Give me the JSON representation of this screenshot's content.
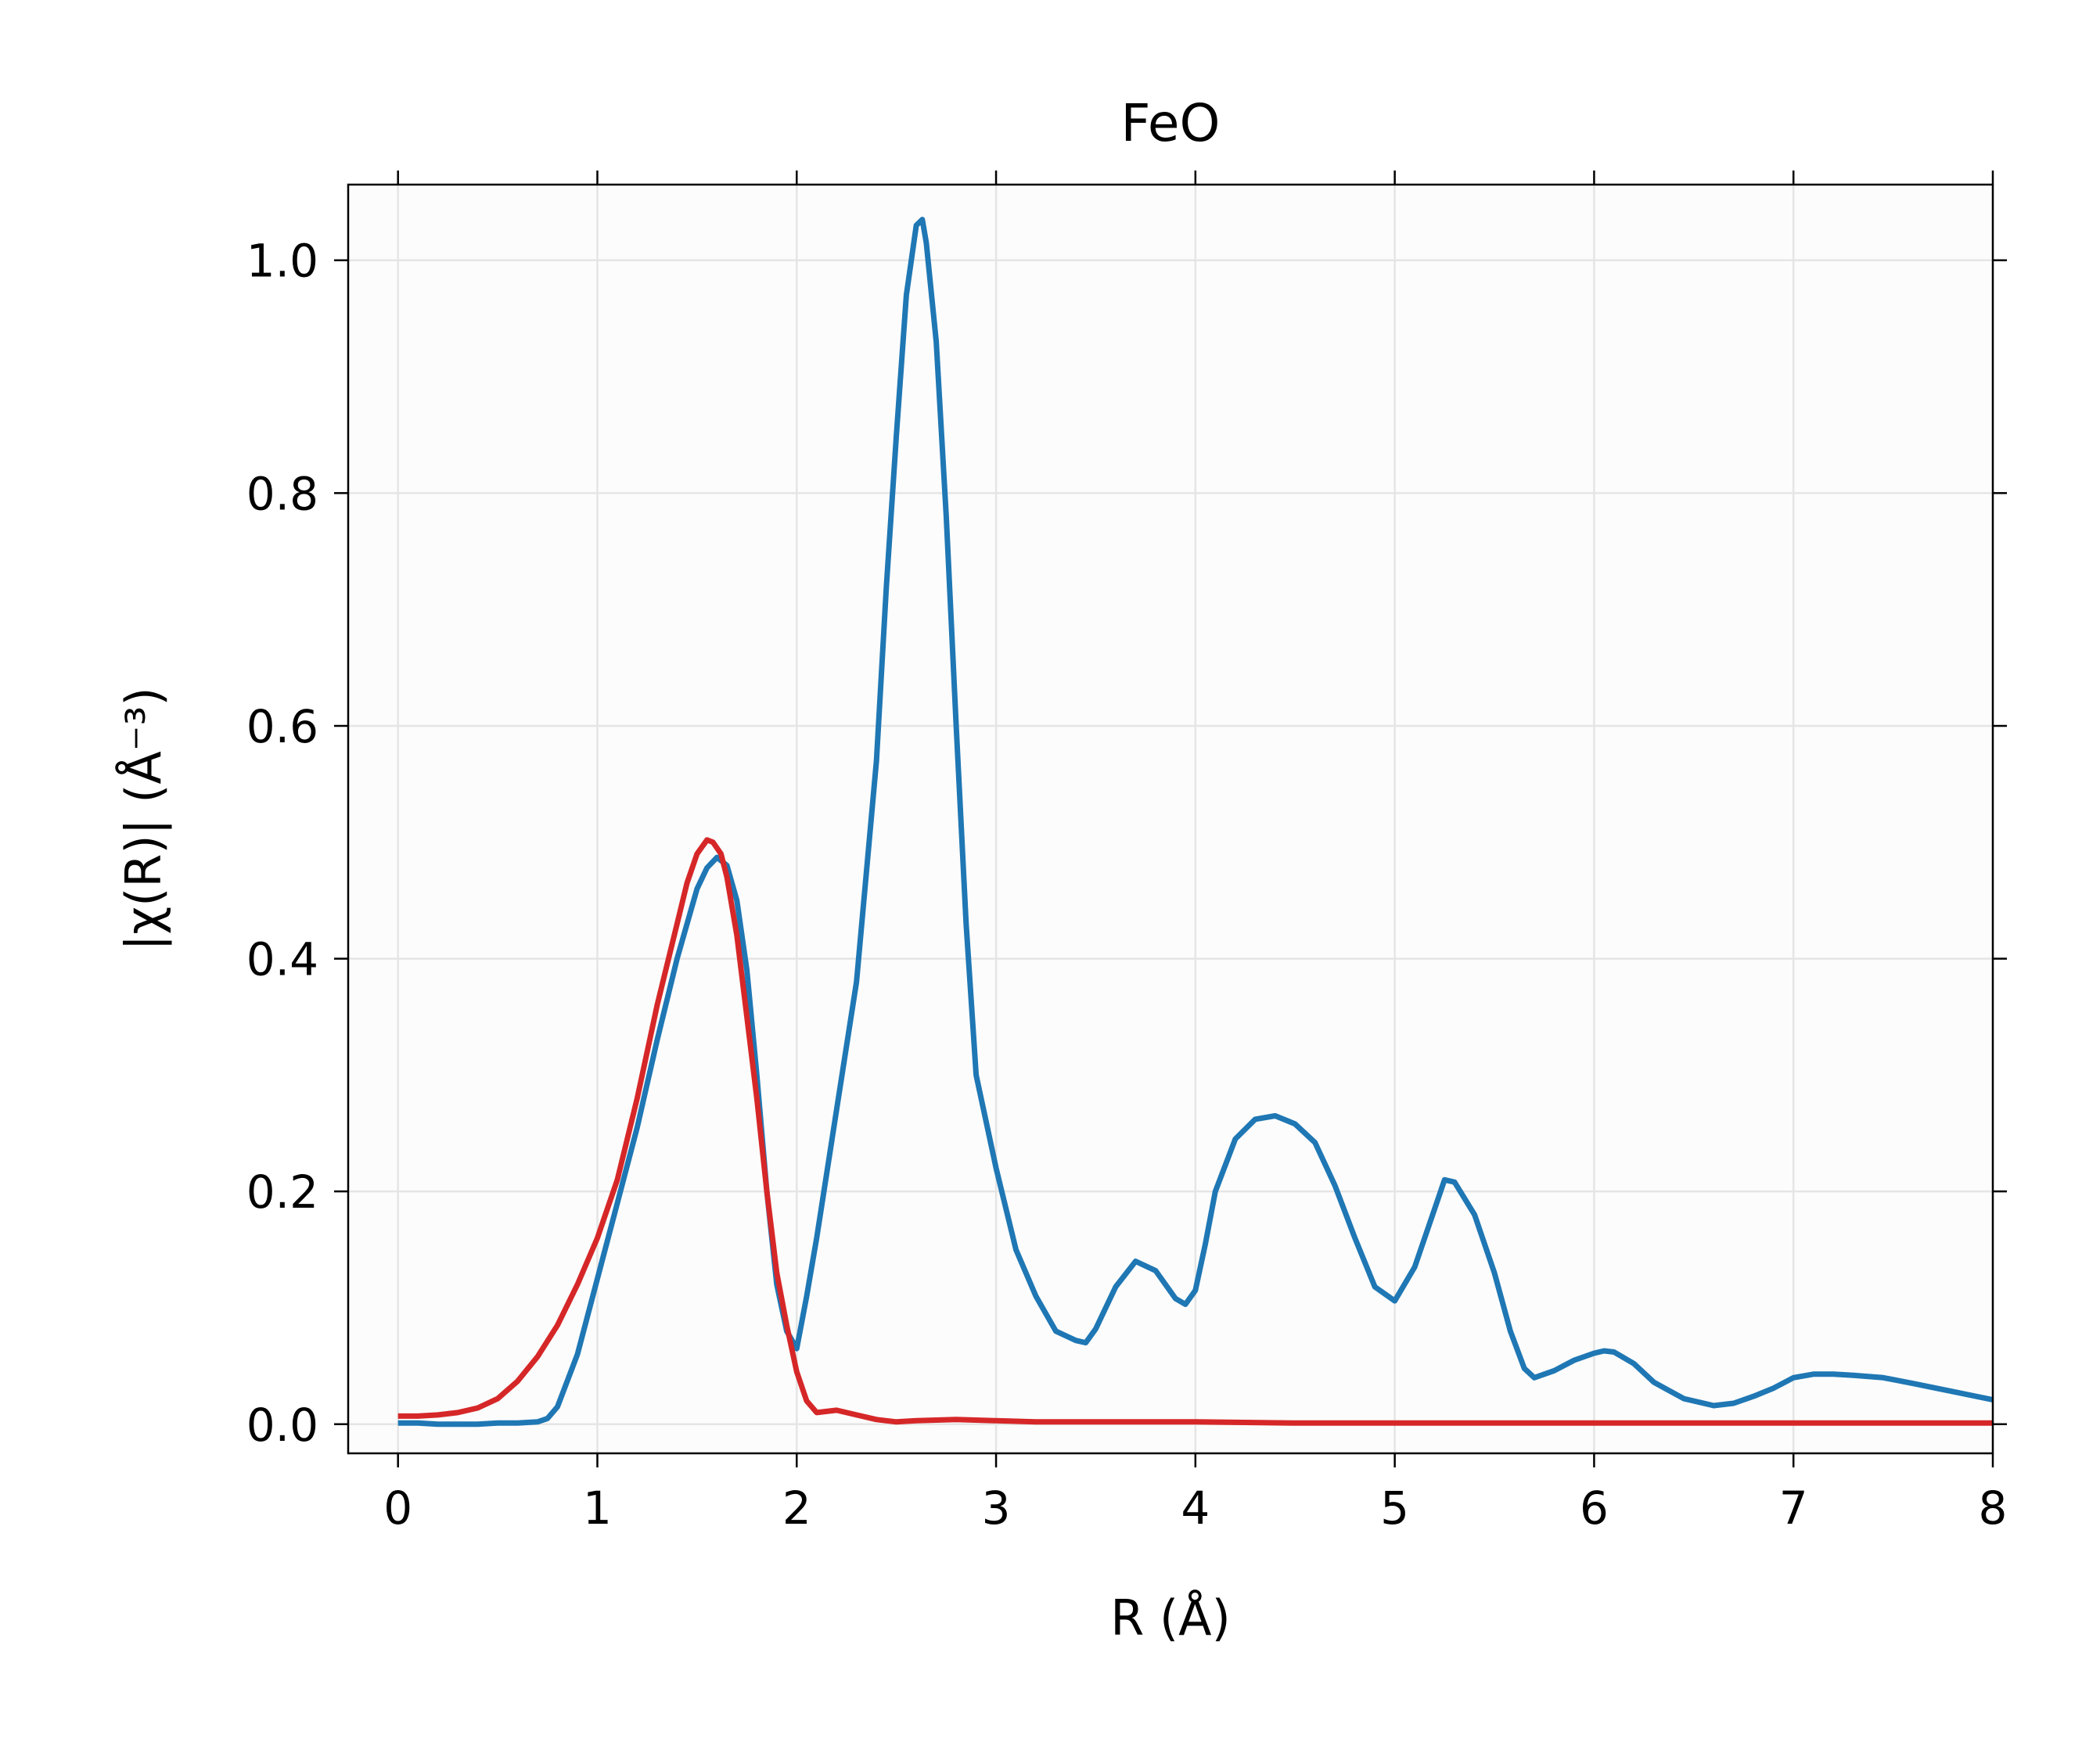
{
  "chart_data": {
    "type": "line",
    "title": "FeO",
    "xlabel": "R (Å)",
    "ylabel": "|χ(R)| (Å⁻³)",
    "xlim": [
      -0.25,
      8.0
    ],
    "ylim": [
      -0.025,
      1.065
    ],
    "x_ticks": [
      "0",
      "1",
      "2",
      "3",
      "4",
      "5",
      "6",
      "7",
      "8"
    ],
    "y_ticks": [
      "0.0",
      "0.2",
      "0.4",
      "0.6",
      "0.8",
      "1.0"
    ],
    "grid": true,
    "colors": {
      "blue": "#1f77b4",
      "red": "#d62728",
      "plot_background": "#fcfcfc",
      "grid": "#e5e5e5"
    },
    "series": [
      {
        "color": "#1f77b4",
        "x": [
          0.0,
          0.1,
          0.2,
          0.3,
          0.4,
          0.5,
          0.6,
          0.7,
          0.75,
          0.8,
          0.9,
          1.0,
          1.1,
          1.2,
          1.3,
          1.4,
          1.5,
          1.55,
          1.6,
          1.65,
          1.7,
          1.75,
          1.8,
          1.85,
          1.9,
          1.95,
          2.0,
          2.05,
          2.1,
          2.2,
          2.3,
          2.4,
          2.45,
          2.5,
          2.55,
          2.6,
          2.63,
          2.65,
          2.7,
          2.75,
          2.8,
          2.85,
          2.9,
          3.0,
          3.1,
          3.2,
          3.3,
          3.4,
          3.45,
          3.5,
          3.6,
          3.7,
          3.8,
          3.9,
          3.95,
          4.0,
          4.05,
          4.1,
          4.2,
          4.3,
          4.4,
          4.5,
          4.6,
          4.7,
          4.8,
          4.9,
          5.0,
          5.1,
          5.2,
          5.25,
          5.3,
          5.4,
          5.5,
          5.58,
          5.65,
          5.7,
          5.8,
          5.9,
          6.0,
          6.05,
          6.1,
          6.2,
          6.3,
          6.45,
          6.6,
          6.7,
          6.8,
          6.9,
          7.0,
          7.1,
          7.2,
          7.3,
          7.45,
          7.6,
          7.8,
          8.0
        ],
        "y": [
          0.001,
          0.001,
          0.0,
          0.0,
          0.0,
          0.001,
          0.001,
          0.002,
          0.005,
          0.015,
          0.06,
          0.125,
          0.19,
          0.255,
          0.33,
          0.4,
          0.46,
          0.478,
          0.487,
          0.48,
          0.45,
          0.39,
          0.3,
          0.2,
          0.12,
          0.08,
          0.065,
          0.11,
          0.16,
          0.27,
          0.38,
          0.57,
          0.72,
          0.85,
          0.97,
          1.03,
          1.035,
          1.015,
          0.93,
          0.78,
          0.6,
          0.43,
          0.3,
          0.22,
          0.15,
          0.11,
          0.08,
          0.072,
          0.07,
          0.082,
          0.118,
          0.14,
          0.132,
          0.108,
          0.103,
          0.115,
          0.155,
          0.2,
          0.245,
          0.262,
          0.265,
          0.258,
          0.242,
          0.205,
          0.16,
          0.118,
          0.106,
          0.135,
          0.185,
          0.21,
          0.208,
          0.18,
          0.13,
          0.08,
          0.048,
          0.04,
          0.046,
          0.055,
          0.061,
          0.063,
          0.062,
          0.052,
          0.036,
          0.022,
          0.016,
          0.018,
          0.024,
          0.031,
          0.04,
          0.043,
          0.043,
          0.042,
          0.04,
          0.035,
          0.028,
          0.021
        ]
      },
      {
        "color": "#d62728",
        "x": [
          0.0,
          0.1,
          0.2,
          0.3,
          0.4,
          0.5,
          0.6,
          0.7,
          0.8,
          0.9,
          1.0,
          1.1,
          1.2,
          1.3,
          1.4,
          1.45,
          1.5,
          1.55,
          1.58,
          1.62,
          1.65,
          1.7,
          1.75,
          1.8,
          1.85,
          1.9,
          1.95,
          2.0,
          2.05,
          2.1,
          2.2,
          2.3,
          2.4,
          2.5,
          2.6,
          2.8,
          3.0,
          3.2,
          3.5,
          4.0,
          4.5,
          5.0,
          5.5,
          6.0,
          6.5,
          7.0,
          7.5,
          8.0
        ],
        "y": [
          0.007,
          0.007,
          0.008,
          0.01,
          0.014,
          0.022,
          0.037,
          0.058,
          0.085,
          0.12,
          0.16,
          0.21,
          0.28,
          0.36,
          0.43,
          0.465,
          0.49,
          0.502,
          0.5,
          0.49,
          0.47,
          0.42,
          0.35,
          0.28,
          0.2,
          0.13,
          0.085,
          0.045,
          0.02,
          0.01,
          0.012,
          0.008,
          0.004,
          0.002,
          0.003,
          0.004,
          0.003,
          0.002,
          0.002,
          0.002,
          0.001,
          0.001,
          0.001,
          0.001,
          0.001,
          0.001,
          0.001,
          0.001
        ]
      }
    ]
  }
}
